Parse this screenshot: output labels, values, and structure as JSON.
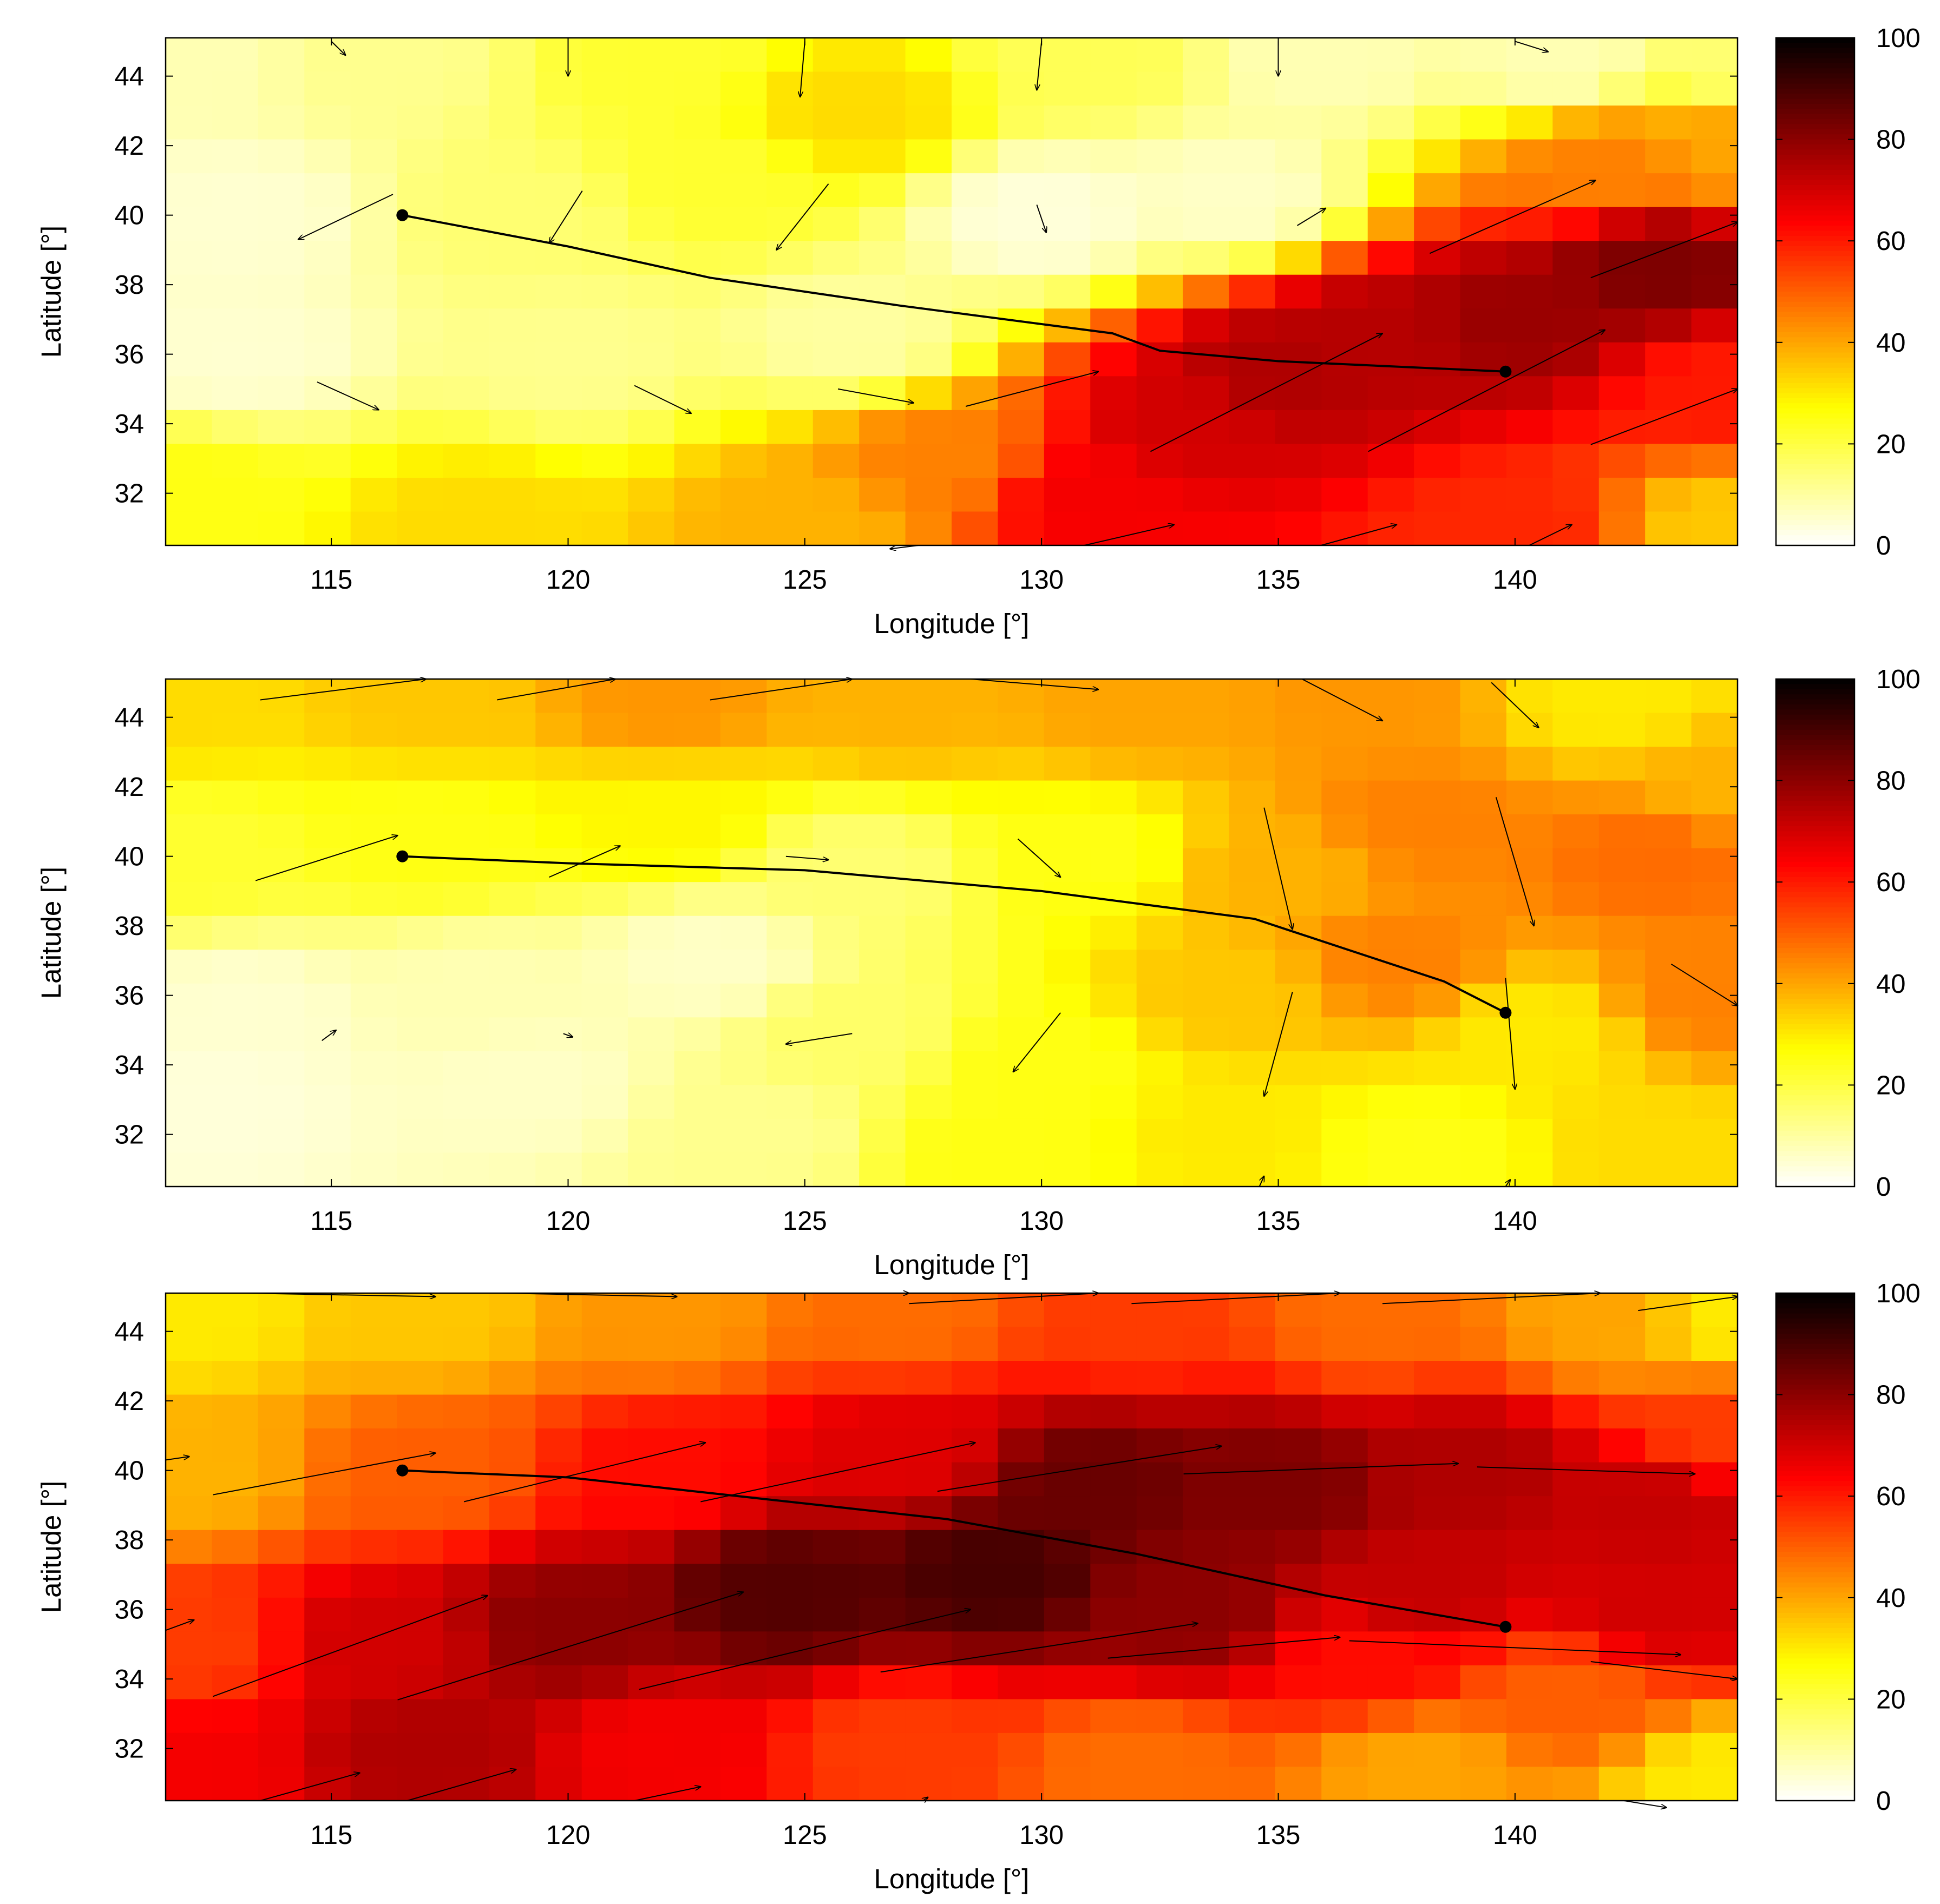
{
  "chart_data": [
    {
      "type": "heatmap",
      "title": "",
      "xlabel": "Longitude [°]",
      "ylabel": "Latitude [°]",
      "xlim": [
        111.5,
        144.7
      ],
      "ylim": [
        30.5,
        45.1
      ],
      "xticks": [
        115,
        120,
        125,
        130,
        135,
        140
      ],
      "yticks": [
        32,
        34,
        36,
        38,
        40,
        42,
        44
      ],
      "colorbar": {
        "range": [
          0,
          100
        ],
        "ticks": [
          0,
          20,
          40,
          60,
          80,
          100
        ],
        "colormap": "hot_r"
      },
      "regions": [
        {
          "lon": 112,
          "lat": 44.5,
          "value": 8
        },
        {
          "lon": 116,
          "lat": 44.5,
          "value": 12
        },
        {
          "lon": 122,
          "lat": 44.5,
          "value": 22
        },
        {
          "lon": 126,
          "lat": 43,
          "value": 32
        },
        {
          "lon": 131,
          "lat": 44.5,
          "value": 18
        },
        {
          "lon": 136,
          "lat": 44.5,
          "value": 8
        },
        {
          "lon": 141,
          "lat": 44.5,
          "value": 8
        },
        {
          "lon": 144.5,
          "lat": 44.5,
          "value": 15
        },
        {
          "lon": 113,
          "lat": 40,
          "value": 5
        },
        {
          "lon": 119,
          "lat": 40,
          "value": 15
        },
        {
          "lon": 123,
          "lat": 41,
          "value": 22
        },
        {
          "lon": 130,
          "lat": 40,
          "value": 4
        },
        {
          "lon": 134,
          "lat": 40.5,
          "value": 6
        },
        {
          "lon": 113,
          "lat": 36,
          "value": 5
        },
        {
          "lon": 120,
          "lat": 36,
          "value": 12
        },
        {
          "lon": 126,
          "lat": 36.5,
          "value": 10
        },
        {
          "lon": 112,
          "lat": 32,
          "value": 25
        },
        {
          "lon": 118,
          "lat": 31,
          "value": 32
        },
        {
          "lon": 125,
          "lat": 31,
          "value": 38
        },
        {
          "lon": 128,
          "lat": 33,
          "value": 45
        },
        {
          "lon": 131,
          "lat": 32,
          "value": 65
        },
        {
          "lon": 133,
          "lat": 34,
          "value": 70
        },
        {
          "lon": 135,
          "lat": 35.5,
          "value": 75
        },
        {
          "lon": 137,
          "lat": 36.5,
          "value": 74
        },
        {
          "lon": 140,
          "lat": 37,
          "value": 78
        },
        {
          "lon": 143,
          "lat": 38.5,
          "value": 82
        },
        {
          "lon": 142,
          "lat": 41.5,
          "value": 45
        },
        {
          "lon": 144.5,
          "lat": 42,
          "value": 40
        },
        {
          "lon": 140,
          "lat": 31,
          "value": 58
        },
        {
          "lon": 144.5,
          "lat": 31,
          "value": 35
        },
        {
          "lon": 144.5,
          "lat": 35,
          "value": 60
        }
      ],
      "track": [
        [
          116.5,
          40.0
        ],
        [
          120,
          39.1
        ],
        [
          123,
          38.2
        ],
        [
          127,
          37.4
        ],
        [
          131.5,
          36.6
        ],
        [
          132.5,
          36.1
        ],
        [
          135,
          35.8
        ],
        [
          139.8,
          35.5
        ]
      ],
      "track_endpoints": [
        [
          116.5,
          40.0
        ],
        [
          139.8,
          35.5
        ]
      ],
      "wind_vectors": [
        [
          115,
          45.0,
          115.3,
          44.6
        ],
        [
          120,
          45.1,
          120,
          44.0
        ],
        [
          125,
          45.0,
          124.9,
          43.4
        ],
        [
          130,
          45.0,
          129.9,
          43.6
        ],
        [
          135,
          45.0,
          135,
          44.0
        ],
        [
          140,
          45.0,
          140.7,
          44.7
        ],
        [
          116.3,
          40.6,
          114.3,
          39.3
        ],
        [
          120.3,
          40.7,
          119.6,
          39.2
        ],
        [
          125.5,
          40.9,
          124.4,
          39.0
        ],
        [
          129.9,
          40.3,
          130.1,
          39.5
        ],
        [
          135.4,
          39.7,
          136,
          40.2
        ],
        [
          138.2,
          38.9,
          141.7,
          41.0
        ],
        [
          141.6,
          38.2,
          144.7,
          39.8
        ],
        [
          114.7,
          35.2,
          116,
          34.4
        ],
        [
          121.4,
          35.1,
          122.6,
          34.3
        ],
        [
          125.7,
          35.0,
          127.3,
          34.6
        ],
        [
          128.4,
          34.5,
          131.2,
          35.5
        ],
        [
          132.3,
          33.2,
          137.2,
          36.6
        ],
        [
          136.9,
          33.2,
          141.9,
          36.7
        ],
        [
          141.6,
          33.4,
          144.7,
          35.0
        ],
        [
          130.9,
          30.5,
          132.8,
          31.1
        ],
        [
          135.9,
          30.5,
          137.5,
          31.1
        ],
        [
          140.3,
          30.5,
          141.2,
          31.1
        ],
        [
          127.4,
          30.5,
          126.8,
          30.4
        ]
      ]
    },
    {
      "type": "heatmap",
      "title": "",
      "xlabel": "Longitude [°]",
      "ylabel": "Latitude [°]",
      "xlim": [
        111.5,
        144.7
      ],
      "ylim": [
        30.5,
        45.1
      ],
      "xticks": [
        115,
        120,
        125,
        130,
        135,
        140
      ],
      "yticks": [
        32,
        34,
        36,
        38,
        40,
        42,
        44
      ],
      "colorbar": {
        "range": [
          0,
          100
        ],
        "ticks": [
          0,
          20,
          40,
          60,
          80,
          100
        ],
        "colormap": "hot_r"
      },
      "regions": [
        {
          "lon": 112,
          "lat": 44.5,
          "value": 32
        },
        {
          "lon": 117,
          "lat": 44.5,
          "value": 35
        },
        {
          "lon": 122,
          "lat": 44.5,
          "value": 42
        },
        {
          "lon": 127,
          "lat": 44.5,
          "value": 38
        },
        {
          "lon": 132,
          "lat": 44.5,
          "value": 40
        },
        {
          "lon": 137,
          "lat": 44.5,
          "value": 42
        },
        {
          "lon": 142,
          "lat": 44.5,
          "value": 30
        },
        {
          "lon": 144.5,
          "lat": 42,
          "value": 38
        },
        {
          "lon": 112,
          "lat": 40,
          "value": 22
        },
        {
          "lon": 117,
          "lat": 40.5,
          "value": 25
        },
        {
          "lon": 122,
          "lat": 41,
          "value": 28
        },
        {
          "lon": 126,
          "lat": 39.5,
          "value": 15
        },
        {
          "lon": 131,
          "lat": 40,
          "value": 25
        },
        {
          "lon": 135,
          "lat": 39.5,
          "value": 38
        },
        {
          "lon": 138,
          "lat": 41,
          "value": 45
        },
        {
          "lon": 143,
          "lat": 40,
          "value": 48
        },
        {
          "lon": 113,
          "lat": 35.5,
          "value": 5
        },
        {
          "lon": 118,
          "lat": 36,
          "value": 8
        },
        {
          "lon": 123,
          "lat": 37,
          "value": 6
        },
        {
          "lon": 126,
          "lat": 35,
          "value": 16
        },
        {
          "lon": 130,
          "lat": 34,
          "value": 25
        },
        {
          "lon": 134,
          "lat": 36,
          "value": 35
        },
        {
          "lon": 137.5,
          "lat": 37,
          "value": 45
        },
        {
          "lon": 140.5,
          "lat": 35,
          "value": 30
        },
        {
          "lon": 144,
          "lat": 36,
          "value": 45
        },
        {
          "lon": 112.5,
          "lat": 33,
          "value": 4
        },
        {
          "lon": 119,
          "lat": 33.5,
          "value": 6
        },
        {
          "lon": 124,
          "lat": 32,
          "value": 12
        },
        {
          "lon": 129,
          "lat": 31.5,
          "value": 25
        },
        {
          "lon": 134,
          "lat": 32,
          "value": 30
        },
        {
          "lon": 138,
          "lat": 31.5,
          "value": 25
        },
        {
          "lon": 143,
          "lat": 31.5,
          "value": 32
        }
      ],
      "track": [
        [
          116.5,
          40.0
        ],
        [
          120,
          39.8
        ],
        [
          125,
          39.6
        ],
        [
          130,
          39.0
        ],
        [
          134.5,
          38.2
        ],
        [
          136.5,
          37.3
        ],
        [
          138.5,
          36.4
        ],
        [
          139.8,
          35.5
        ]
      ],
      "track_endpoints": [
        [
          116.5,
          40.0
        ],
        [
          139.8,
          35.5
        ]
      ],
      "wind_vectors": [
        [
          113.5,
          44.5,
          117,
          45.1
        ],
        [
          118.5,
          44.5,
          121,
          45.1
        ],
        [
          123,
          44.5,
          126,
          45.1
        ],
        [
          128.5,
          45.1,
          131.2,
          44.8
        ],
        [
          135.5,
          45.1,
          137.2,
          43.9
        ],
        [
          139.5,
          45.0,
          140.5,
          43.7
        ],
        [
          113.4,
          39.3,
          116.4,
          40.6
        ],
        [
          119.6,
          39.4,
          121.1,
          40.3
        ],
        [
          124.6,
          40.0,
          125.5,
          39.9
        ],
        [
          129.5,
          40.5,
          130.4,
          39.4
        ],
        [
          134.7,
          41.4,
          135.3,
          37.9
        ],
        [
          139.6,
          41.7,
          140.4,
          38.0
        ],
        [
          143.3,
          36.9,
          144.7,
          35.7
        ],
        [
          114.8,
          34.7,
          115.1,
          35.0
        ],
        [
          119.9,
          34.9,
          120.1,
          34.8
        ],
        [
          126.0,
          34.9,
          124.6,
          34.6
        ],
        [
          130.4,
          35.5,
          129.4,
          33.8
        ],
        [
          135.3,
          36.1,
          134.7,
          33.1
        ],
        [
          139.8,
          36.5,
          140,
          33.3
        ],
        [
          134.6,
          30.5,
          134.7,
          30.8
        ],
        [
          139.8,
          30.5,
          139.9,
          30.7
        ]
      ]
    },
    {
      "type": "heatmap",
      "title": "",
      "xlabel": "Longitude [°]",
      "ylabel": "Latitude [°]",
      "xlim": [
        111.5,
        144.7
      ],
      "ylim": [
        30.5,
        45.1
      ],
      "xticks": [
        115,
        120,
        125,
        130,
        135,
        140
      ],
      "yticks": [
        32,
        34,
        36,
        38,
        40,
        42,
        44
      ],
      "colorbar": {
        "range": [
          0,
          100
        ],
        "ticks": [
          0,
          20,
          40,
          60,
          80,
          100
        ],
        "colormap": "hot_r"
      },
      "regions": [
        {
          "lon": 112,
          "lat": 44.5,
          "value": 30
        },
        {
          "lon": 117,
          "lat": 44.5,
          "value": 35
        },
        {
          "lon": 122,
          "lat": 44.5,
          "value": 42
        },
        {
          "lon": 127,
          "lat": 44.5,
          "value": 48
        },
        {
          "lon": 132,
          "lat": 44.5,
          "value": 55
        },
        {
          "lon": 137,
          "lat": 44.5,
          "value": 48
        },
        {
          "lon": 142,
          "lat": 44.5,
          "value": 40
        },
        {
          "lon": 144.5,
          "lat": 44.5,
          "value": 30
        },
        {
          "lon": 112,
          "lat": 40,
          "value": 38
        },
        {
          "lon": 117,
          "lat": 40,
          "value": 50
        },
        {
          "lon": 122,
          "lat": 40,
          "value": 62
        },
        {
          "lon": 127,
          "lat": 40.5,
          "value": 68
        },
        {
          "lon": 131,
          "lat": 39.5,
          "value": 85
        },
        {
          "lon": 135,
          "lat": 39.5,
          "value": 82
        },
        {
          "lon": 139,
          "lat": 40,
          "value": 75
        },
        {
          "lon": 143,
          "lat": 39,
          "value": 72
        },
        {
          "lon": 144.5,
          "lat": 41,
          "value": 55
        },
        {
          "lon": 112,
          "lat": 35,
          "value": 55
        },
        {
          "lon": 116,
          "lat": 35,
          "value": 70
        },
        {
          "lon": 120,
          "lat": 35.5,
          "value": 80
        },
        {
          "lon": 124.5,
          "lat": 36.5,
          "value": 88
        },
        {
          "lon": 129,
          "lat": 37,
          "value": 90
        },
        {
          "lon": 133,
          "lat": 36,
          "value": 80
        },
        {
          "lon": 138,
          "lat": 36.5,
          "value": 72
        },
        {
          "lon": 143,
          "lat": 36,
          "value": 70
        },
        {
          "lon": 137,
          "lat": 34.5,
          "value": 62
        },
        {
          "lon": 141,
          "lat": 33.5,
          "value": 50
        },
        {
          "lon": 112,
          "lat": 31.5,
          "value": 65
        },
        {
          "lon": 117,
          "lat": 32,
          "value": 75
        },
        {
          "lon": 122,
          "lat": 32,
          "value": 65
        },
        {
          "lon": 127,
          "lat": 32,
          "value": 55
        },
        {
          "lon": 132,
          "lat": 31.5,
          "value": 48
        },
        {
          "lon": 138,
          "lat": 31.5,
          "value": 40
        },
        {
          "lon": 144.5,
          "lat": 31,
          "value": 30
        }
      ],
      "track": [
        [
          116.5,
          40.0
        ],
        [
          120,
          39.8
        ],
        [
          124,
          39.2
        ],
        [
          128,
          38.6
        ],
        [
          132,
          37.6
        ],
        [
          136,
          36.4
        ],
        [
          139.8,
          35.5
        ]
      ],
      "track_endpoints": [
        [
          116.5,
          40.0
        ],
        [
          139.8,
          35.5
        ]
      ],
      "wind_vectors": [
        [
          113.2,
          45.1,
          117.2,
          45.0
        ],
        [
          118.6,
          45.1,
          122.3,
          45.0
        ],
        [
          123.7,
          45.1,
          127.2,
          45.1
        ],
        [
          127.2,
          44.8,
          131.2,
          45.1
        ],
        [
          131.9,
          44.8,
          136.3,
          45.1
        ],
        [
          137.2,
          44.8,
          141.8,
          45.1
        ],
        [
          142.6,
          44.6,
          144.7,
          45.0
        ],
        [
          111.5,
          40.3,
          112,
          40.4
        ],
        [
          112.5,
          39.3,
          117.2,
          40.5
        ],
        [
          117.8,
          39.1,
          122.9,
          40.8
        ],
        [
          122.8,
          39.1,
          128.6,
          40.8
        ],
        [
          127.8,
          39.4,
          133.8,
          40.7
        ],
        [
          133,
          39.9,
          138.8,
          40.2
        ],
        [
          139.2,
          40.1,
          143.8,
          39.9
        ],
        [
          111.5,
          35.4,
          112.1,
          35.7
        ],
        [
          112.5,
          33.5,
          118.3,
          36.4
        ],
        [
          116.4,
          33.4,
          123.7,
          36.5
        ],
        [
          121.5,
          33.7,
          128.5,
          36.0
        ],
        [
          126.6,
          34.2,
          133.3,
          35.6
        ],
        [
          131.4,
          34.6,
          136.3,
          35.2
        ],
        [
          136.5,
          35.1,
          143.5,
          34.7
        ],
        [
          113.5,
          30.5,
          115.6,
          31.3
        ],
        [
          116.6,
          30.5,
          118.9,
          31.4
        ],
        [
          121.4,
          30.5,
          122.8,
          30.9
        ],
        [
          141.6,
          34.5,
          144.7,
          34.0
        ],
        [
          142.3,
          30.5,
          143.2,
          30.3
        ],
        [
          127.5,
          30.5,
          127.6,
          30.6
        ]
      ]
    }
  ]
}
